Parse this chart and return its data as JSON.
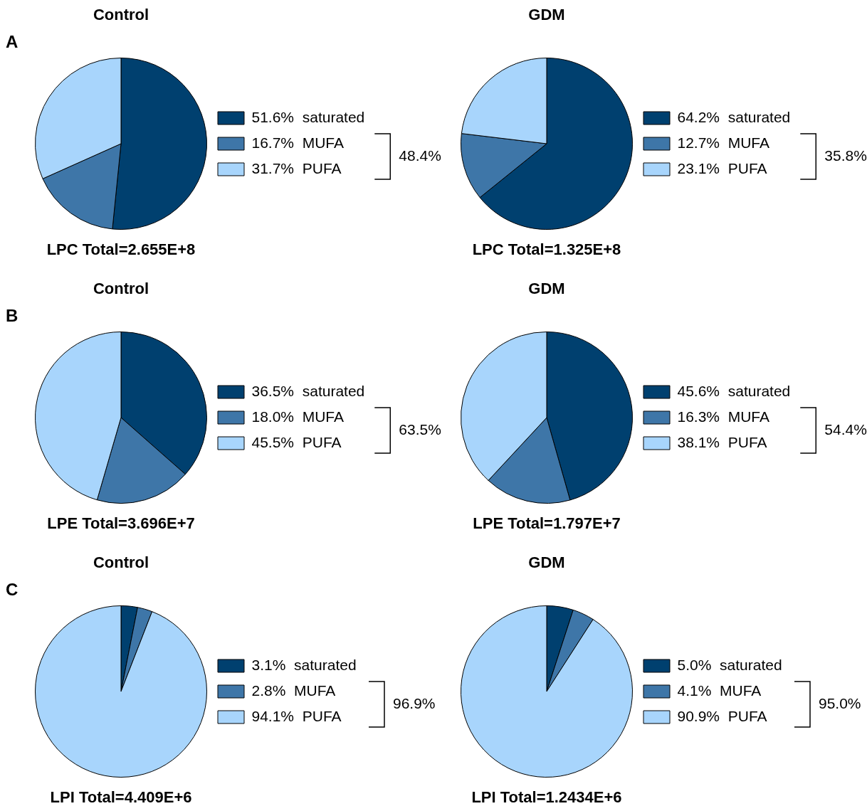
{
  "chart_data": [
    {
      "type": "pie",
      "title": "Control",
      "xlabel": "LPC Total=2.655E+8",
      "categories": [
        "saturated",
        "MUFA",
        "PUFA"
      ],
      "values": [
        51.6,
        16.7,
        31.7
      ],
      "value_labels": [
        "51.6%",
        "16.7%",
        "31.7%"
      ],
      "colors": [
        "#00406f",
        "#3e76a8",
        "#a8d5fc"
      ],
      "legend": "right",
      "annotations": [
        "48.4%",
        "A"
      ]
    },
    {
      "type": "pie",
      "title": "GDM",
      "xlabel": "LPC Total=1.325E+8",
      "categories": [
        "saturated",
        "MUFA",
        "PUFA"
      ],
      "values": [
        64.2,
        12.7,
        23.1
      ],
      "value_labels": [
        "64.2%",
        "12.7%",
        "23.1%"
      ],
      "colors": [
        "#00406f",
        "#3e76a8",
        "#a8d5fc"
      ],
      "legend": "right",
      "annotations": [
        "35.8%"
      ]
    },
    {
      "type": "pie",
      "title": "Control",
      "xlabel": "LPE Total=3.696E+7",
      "categories": [
        "saturated",
        "MUFA",
        "PUFA"
      ],
      "values": [
        36.5,
        18.0,
        45.5
      ],
      "value_labels": [
        "36.5%",
        "18.0%",
        "45.5%"
      ],
      "colors": [
        "#00406f",
        "#3e76a8",
        "#a8d5fc"
      ],
      "legend": "right",
      "annotations": [
        "63.5%",
        "B"
      ]
    },
    {
      "type": "pie",
      "title": "GDM",
      "xlabel": "LPE Total=1.797E+7",
      "categories": [
        "saturated",
        "MUFA",
        "PUFA"
      ],
      "values": [
        45.6,
        16.3,
        38.1
      ],
      "value_labels": [
        "45.6%",
        "16.3%",
        "38.1%"
      ],
      "colors": [
        "#00406f",
        "#3e76a8",
        "#a8d5fc"
      ],
      "legend": "right",
      "annotations": [
        "54.4%"
      ]
    },
    {
      "type": "pie",
      "title": "Control",
      "xlabel": "LPI Total=4.409E+6",
      "categories": [
        "saturated",
        "MUFA",
        "PUFA"
      ],
      "values": [
        3.1,
        2.8,
        94.1
      ],
      "value_labels": [
        "3.1%",
        "2.8%",
        "94.1%"
      ],
      "colors": [
        "#00406f",
        "#3e76a8",
        "#a8d5fc"
      ],
      "legend": "right",
      "annotations": [
        "96.9%",
        "C"
      ]
    },
    {
      "type": "pie",
      "title": "GDM",
      "xlabel": "LPI Total=1.2434E+6",
      "categories": [
        "saturated",
        "MUFA",
        "PUFA"
      ],
      "values": [
        5.0,
        4.1,
        90.9
      ],
      "value_labels": [
        "5.0%",
        "4.1%",
        "90.9%"
      ],
      "colors": [
        "#00406f",
        "#3e76a8",
        "#a8d5fc"
      ],
      "legend": "right",
      "annotations": [
        "95.0%"
      ]
    }
  ]
}
